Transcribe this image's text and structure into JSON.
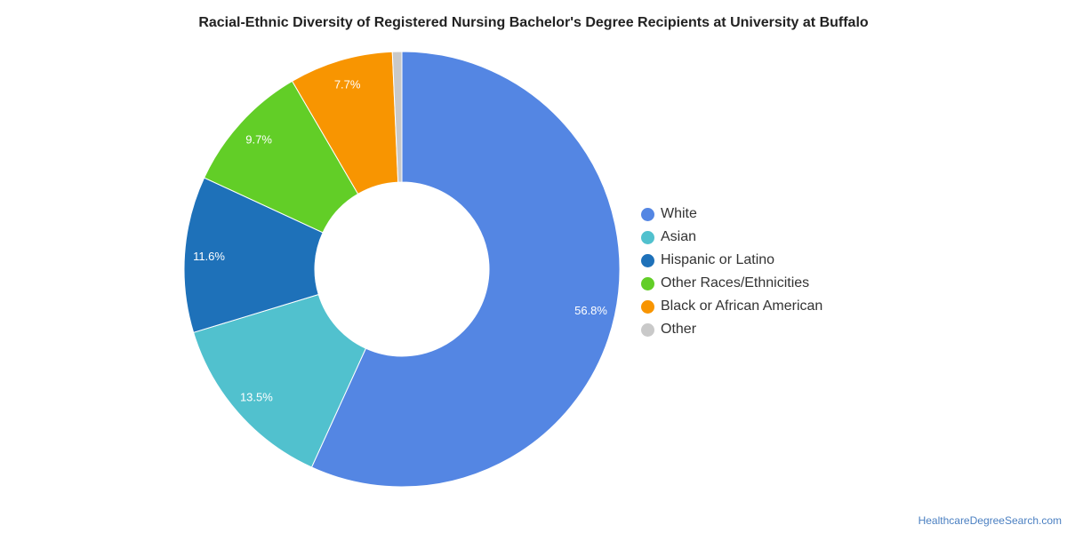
{
  "chart_data": {
    "type": "pie",
    "title": "Racial-Ethnic Diversity of Registered Nursing Bachelor's Degree Recipients at University at Buffalo",
    "legend_position": "right",
    "donut": true,
    "slices": [
      {
        "name": "White",
        "value": 56.8,
        "label": "56.8%",
        "color": "#5486e3"
      },
      {
        "name": "Asian",
        "value": 13.5,
        "label": "13.5%",
        "color": "#51c1ce"
      },
      {
        "name": "Hispanic or Latino",
        "value": 11.6,
        "label": "11.6%",
        "color": "#1e71b9"
      },
      {
        "name": "Other Races/Ethnicities",
        "value": 9.7,
        "label": "9.7%",
        "color": "#62ce27"
      },
      {
        "name": "Black or African American",
        "value": 7.7,
        "label": "7.7%",
        "color": "#f89501"
      },
      {
        "name": "Other",
        "value": 0.7,
        "label": "",
        "color": "#c9c9c9"
      }
    ]
  },
  "credit": "HealthcareDegreeSearch.com"
}
